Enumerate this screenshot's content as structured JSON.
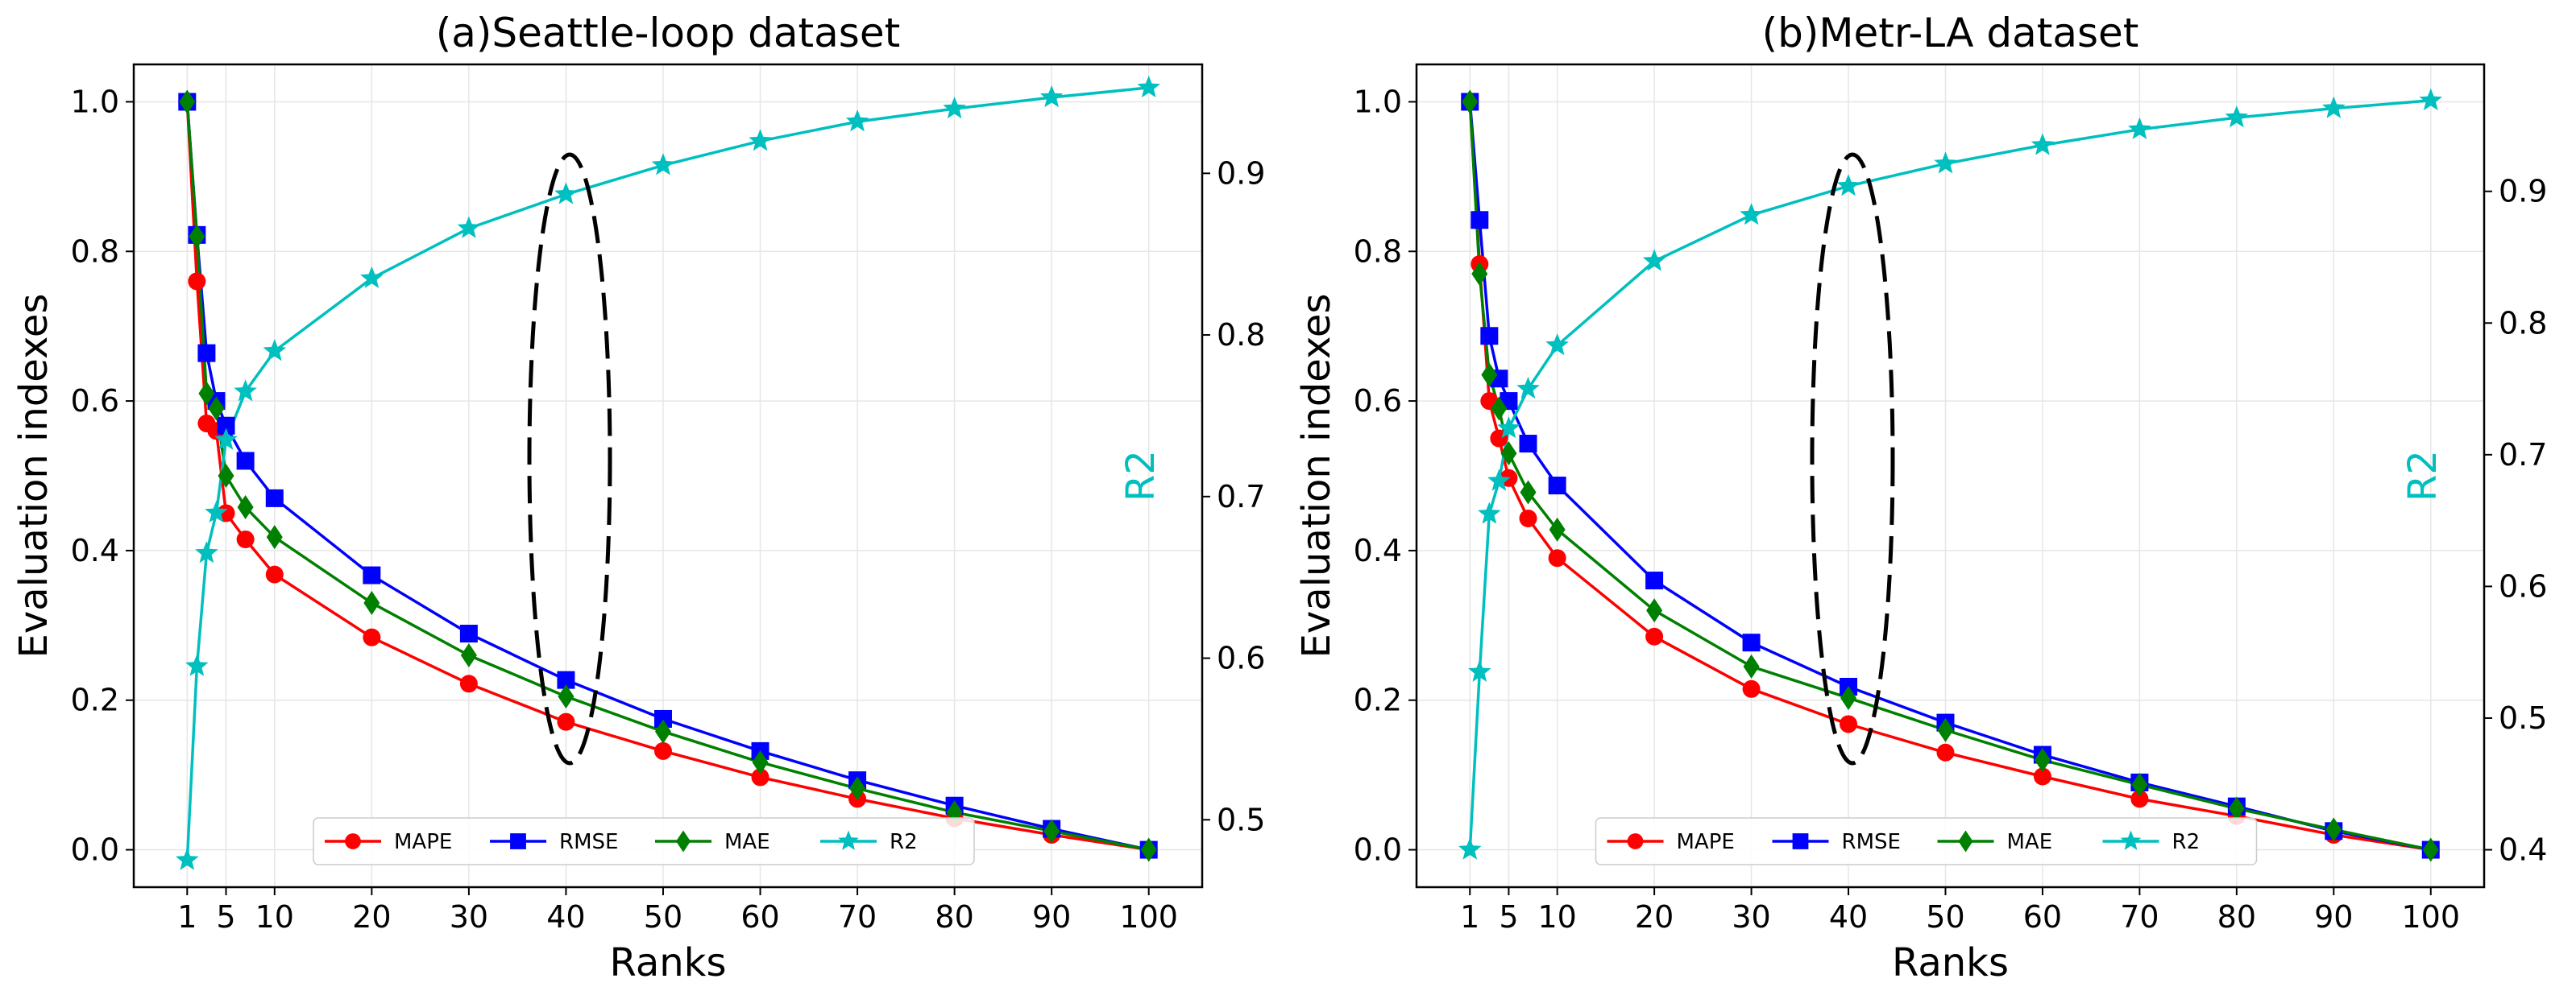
{
  "chart_data": [
    {
      "type": "line",
      "title": "(a)Seattle-loop dataset",
      "xlabel": "Ranks",
      "ylabel": "Evaluation indexes",
      "y2label": "R2",
      "xlim": [
        -4.5,
        105.5
      ],
      "ylim": [
        -0.05,
        1.05
      ],
      "y2lim": [
        0.4583,
        0.9674
      ],
      "xticks": [
        1,
        5,
        10,
        20,
        30,
        40,
        50,
        60,
        70,
        80,
        90,
        100
      ],
      "yticks": [
        0.0,
        0.2,
        0.4,
        0.6,
        0.8,
        1.0
      ],
      "y2ticks": [
        0.5,
        0.6,
        0.7,
        0.8,
        0.9
      ],
      "grid": true,
      "legend_position": "bottom-center",
      "annotation": "dashed ellipse around rank 40",
      "x": [
        1,
        2,
        3,
        4,
        5,
        7,
        10,
        20,
        30,
        40,
        50,
        60,
        70,
        80,
        90,
        100
      ],
      "series": [
        {
          "name": "MAPE",
          "color": "#ff0000",
          "marker": "circle",
          "axis": "left",
          "values": [
            1.0,
            0.76,
            0.57,
            0.56,
            0.45,
            0.415,
            0.368,
            0.284,
            0.222,
            0.171,
            0.132,
            0.097,
            0.068,
            0.042,
            0.02,
            0.0
          ]
        },
        {
          "name": "RMSE",
          "color": "#0000ff",
          "marker": "square",
          "axis": "left",
          "values": [
            1.0,
            0.822,
            0.664,
            0.6,
            0.567,
            0.52,
            0.47,
            0.367,
            0.289,
            0.227,
            0.175,
            0.132,
            0.093,
            0.059,
            0.028,
            0.0
          ]
        },
        {
          "name": "MAE",
          "color": "#008000",
          "marker": "diamond",
          "axis": "left",
          "values": [
            1.0,
            0.82,
            0.61,
            0.59,
            0.5,
            0.458,
            0.418,
            0.33,
            0.26,
            0.205,
            0.158,
            0.117,
            0.082,
            0.05,
            0.025,
            0.0
          ]
        },
        {
          "name": "R2",
          "color": "#00bfbf",
          "marker": "star",
          "axis": "right",
          "values": [
            0.475,
            0.595,
            0.665,
            0.69,
            0.735,
            0.765,
            0.79,
            0.835,
            0.866,
            0.887,
            0.905,
            0.92,
            0.932,
            0.94,
            0.947,
            0.953
          ]
        }
      ]
    },
    {
      "type": "line",
      "title": "(b)Metr-LA dataset",
      "xlabel": "Ranks",
      "ylabel": "Evaluation indexes",
      "y2label": "R2",
      "xlim": [
        -4.5,
        105.5
      ],
      "ylim": [
        -0.05,
        1.05
      ],
      "y2lim": [
        0.3716,
        0.9964
      ],
      "xticks": [
        1,
        5,
        10,
        20,
        30,
        40,
        50,
        60,
        70,
        80,
        90,
        100
      ],
      "yticks": [
        0.0,
        0.2,
        0.4,
        0.6,
        0.8,
        1.0
      ],
      "y2ticks": [
        0.4,
        0.5,
        0.6,
        0.7,
        0.8,
        0.9
      ],
      "grid": true,
      "legend_position": "bottom-center",
      "annotation": "dashed ellipse around rank 40",
      "x": [
        1,
        2,
        3,
        4,
        5,
        7,
        10,
        20,
        30,
        40,
        50,
        60,
        70,
        80,
        90,
        100
      ],
      "series": [
        {
          "name": "MAPE",
          "color": "#ff0000",
          "marker": "circle",
          "axis": "left",
          "values": [
            1.0,
            0.783,
            0.6,
            0.55,
            0.497,
            0.443,
            0.39,
            0.285,
            0.215,
            0.168,
            0.13,
            0.098,
            0.068,
            0.045,
            0.02,
            0.0
          ]
        },
        {
          "name": "RMSE",
          "color": "#0000ff",
          "marker": "square",
          "axis": "left",
          "values": [
            1.0,
            0.842,
            0.687,
            0.63,
            0.6,
            0.543,
            0.487,
            0.36,
            0.277,
            0.218,
            0.17,
            0.127,
            0.09,
            0.058,
            0.025,
            0.0
          ]
        },
        {
          "name": "MAE",
          "color": "#008000",
          "marker": "diamond",
          "axis": "left",
          "values": [
            1.0,
            0.77,
            0.635,
            0.59,
            0.53,
            0.478,
            0.428,
            0.32,
            0.245,
            0.203,
            0.16,
            0.12,
            0.087,
            0.055,
            0.027,
            0.0
          ]
        },
        {
          "name": "R2",
          "color": "#00bfbf",
          "marker": "star",
          "axis": "right",
          "values": [
            0.4,
            0.535,
            0.655,
            0.68,
            0.72,
            0.75,
            0.783,
            0.847,
            0.882,
            0.904,
            0.921,
            0.935,
            0.947,
            0.956,
            0.963,
            0.969
          ]
        }
      ]
    }
  ]
}
